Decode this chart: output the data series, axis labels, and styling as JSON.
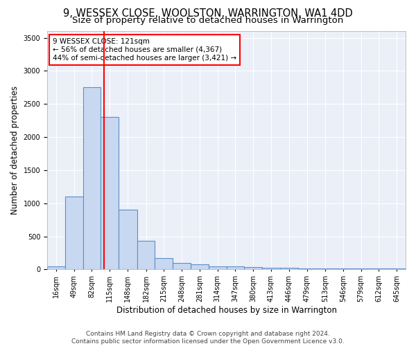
{
  "title": "9, WESSEX CLOSE, WOOLSTON, WARRINGTON, WA1 4DD",
  "subtitle": "Size of property relative to detached houses in Warrington",
  "xlabel": "Distribution of detached houses by size in Warrington",
  "ylabel": "Number of detached properties",
  "bar_edges": [
    16,
    49,
    82,
    115,
    148,
    182,
    215,
    248,
    281,
    314,
    347,
    380,
    413,
    446,
    479,
    513,
    546,
    579,
    612,
    645,
    678
  ],
  "bar_heights": [
    50,
    1100,
    2750,
    2300,
    900,
    430,
    175,
    100,
    75,
    50,
    45,
    40,
    30,
    25,
    20,
    20,
    20,
    20,
    20,
    20
  ],
  "bar_color": "#c8d8f0",
  "bar_edge_color": "#5b8ec4",
  "bar_linewidth": 0.8,
  "vline_x": 121,
  "vline_color": "red",
  "vline_linewidth": 1.5,
  "annotation_line1": "9 WESSEX CLOSE: 121sqm",
  "annotation_line2": "← 56% of detached houses are smaller (4,367)",
  "annotation_line3": "44% of semi-detached houses are larger (3,421) →",
  "ylim": [
    0,
    3600
  ],
  "yticks": [
    0,
    500,
    1000,
    1500,
    2000,
    2500,
    3000,
    3500
  ],
  "background_color": "#eaeff8",
  "grid_color": "#ffffff",
  "footer_text": "Contains HM Land Registry data © Crown copyright and database right 2024.\nContains public sector information licensed under the Open Government Licence v3.0.",
  "title_fontsize": 10.5,
  "subtitle_fontsize": 9.5,
  "xlabel_fontsize": 8.5,
  "ylabel_fontsize": 8.5,
  "tick_fontsize": 7,
  "annotation_fontsize": 7.5,
  "footer_fontsize": 6.5
}
